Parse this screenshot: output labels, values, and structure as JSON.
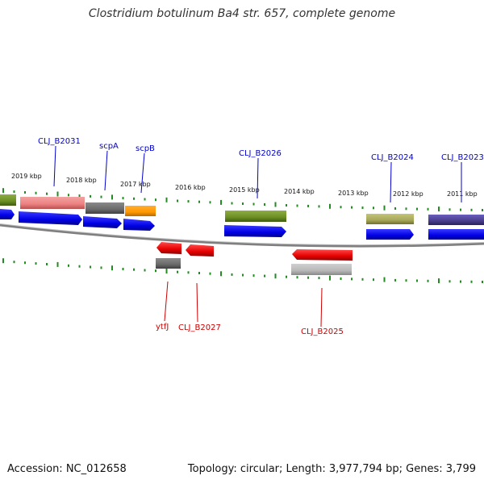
{
  "title": "Clostridium botulinum Ba4 str. 657, complete genome",
  "footer": {
    "accession": "Accession: NC_012658",
    "summary": "Topology: circular; Length: 3,977,794 bp; Genes: 3,799"
  },
  "ruler": [
    "2019 kbp",
    "2018 kbp",
    "2017 kbp",
    "2016 kbp",
    "2015 kbp",
    "2014 kbp",
    "2013 kbp",
    "2012 kbp",
    "2011 kbp"
  ],
  "colors": {
    "forward_label": "#0000cc",
    "reverse_label": "#cc0000",
    "cds_blue": "#0000ee",
    "cds_red": "#ee0000",
    "backbone": "#888888",
    "tick": "#228b22"
  },
  "forward_labels": [
    "CLJ_B2031",
    "scpA",
    "scpB",
    "CLJ_B2026",
    "CLJ_B2024",
    "CLJ_B2023"
  ],
  "reverse_labels": [
    "ytfJ",
    "CLJ_B2027",
    "CLJ_B2025"
  ]
}
